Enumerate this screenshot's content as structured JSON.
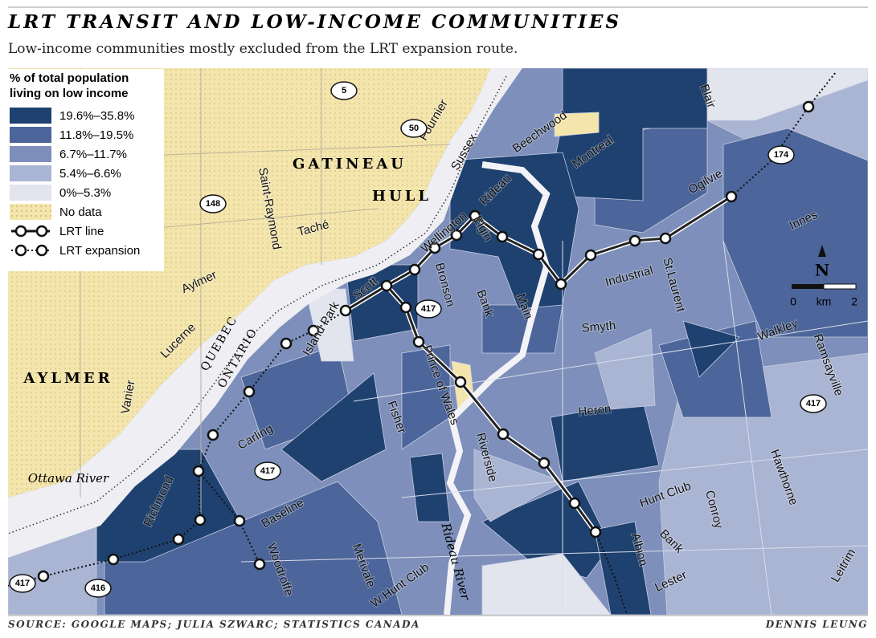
{
  "header": {
    "title": "LRT TRANSIT AND LOW-INCOME COMMUNITIES",
    "subtitle": "Low-income communities mostly excluded from the LRT expansion route."
  },
  "legend": {
    "title": "% of total population living on low income",
    "items": [
      {
        "label": "19.6%–35.8%",
        "color": "#1f4170"
      },
      {
        "label": "11.8%–19.5%",
        "color": "#4c659a"
      },
      {
        "label": "6.7%–11.7%",
        "color": "#7d8fba"
      },
      {
        "label": "5.4%–6.6%",
        "color": "#aab4d3"
      },
      {
        "label": "0%–5.3%",
        "color": "#e2e4ee"
      },
      {
        "label": "No data",
        "color": "#f4e5ac"
      }
    ],
    "lines": [
      {
        "label": "LRT line"
      },
      {
        "label": "LRT expansion"
      }
    ]
  },
  "places": [
    "GATINEAU",
    "HULL",
    "AYLMER"
  ],
  "borders": [
    "QUEBEC",
    "ONTARIO"
  ],
  "water": [
    "Ottawa River",
    "Rideau River"
  ],
  "streets": [
    "Fournier",
    "Sussex",
    "Beechwood",
    "Montreal",
    "Blair",
    "Ogilvie",
    "Innes",
    "Saint-Raymond",
    "Taché",
    "Aylmer",
    "Lucerne",
    "Vanier",
    "Wellington",
    "Rideau",
    "Elgin",
    "Scott",
    "Bronson",
    "Bank",
    "Main",
    "Industrial",
    "St.Laurent",
    "Island Park",
    "Smyth",
    "Walkley",
    "Ramsayville",
    "Carling",
    "Fisher",
    "Prince of Wales",
    "Riverside",
    "Heron",
    "Richmond",
    "Baseline",
    "Woodroffe",
    "Merivale",
    "W.Hunt Club",
    "Hunt Club",
    "Conroy",
    "Hawthorne",
    "Albion",
    "Bank",
    "Lester",
    "Leitrim"
  ],
  "highways": [
    "5",
    "50",
    "148",
    "417",
    "174",
    "417",
    "417",
    "417",
    "416"
  ],
  "scale": {
    "north": "N",
    "labels": [
      "0",
      "km",
      "2"
    ]
  },
  "footer": {
    "source": "SOURCE: GOOGLE MAPS; JULIA SZWARC; STATISTICS CANADA",
    "credit": "DENNIS LEUNG"
  }
}
